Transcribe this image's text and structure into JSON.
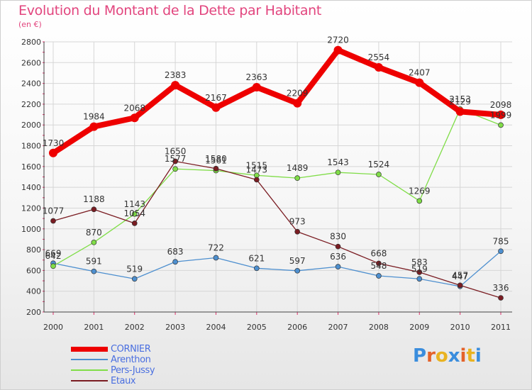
{
  "chart_data": {
    "type": "line",
    "title": "Evolution du Montant de la Dette par Habitant",
    "subtitle": "(en €)",
    "x": [
      "2000",
      "2001",
      "2002",
      "2003",
      "2004",
      "2005",
      "2006",
      "2007",
      "2008",
      "2009",
      "2010",
      "2011"
    ],
    "ylim": [
      200,
      2800
    ],
    "yticks": [
      200,
      400,
      600,
      800,
      1000,
      1200,
      1400,
      1600,
      1800,
      2000,
      2200,
      2400,
      2600,
      2800
    ],
    "grid": true,
    "legend_position": "bottom-left",
    "series": [
      {
        "name": "CORNIER",
        "color": "#ee0000",
        "values": [
          1730,
          1984,
          2068,
          2383,
          2167,
          2363,
          2209,
          2720,
          2554,
          2407,
          2129,
          2098
        ]
      },
      {
        "name": "Arenthon",
        "color": "#4d8fcf",
        "values": [
          669,
          591,
          519,
          683,
          722,
          621,
          597,
          636,
          548,
          519,
          447,
          785
        ]
      },
      {
        "name": "Pers-Jussy",
        "color": "#80dd48",
        "values": [
          642,
          870,
          1143,
          1577,
          1561,
          1515,
          1489,
          1543,
          1524,
          1269,
          2153,
          1999
        ]
      },
      {
        "name": "Etaux",
        "color": "#7a1c22",
        "values": [
          1077,
          1188,
          1054,
          1650,
          1580,
          1473,
          973,
          830,
          668,
          583,
          457,
          336
        ]
      }
    ]
  },
  "logo": {
    "text": "Proxiti",
    "colors": [
      "#3a8ddd",
      "#e4622a",
      "#e9b321",
      "#3a8ddd",
      "#e4622a",
      "#e9b321",
      "#3a8ddd"
    ]
  }
}
